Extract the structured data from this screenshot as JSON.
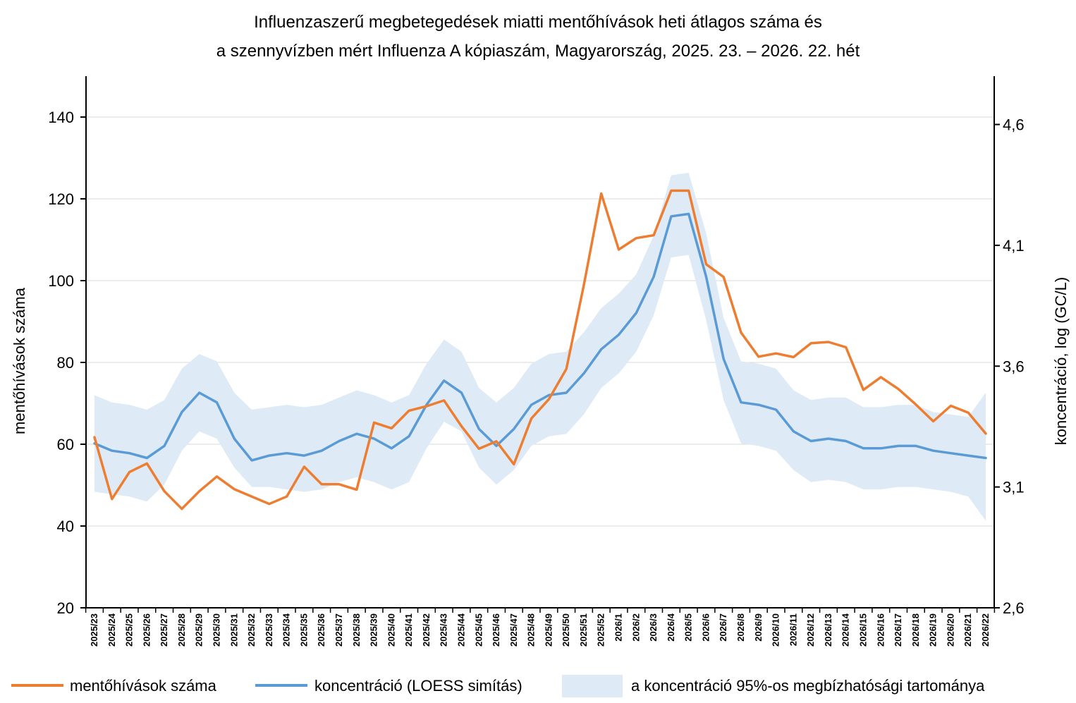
{
  "chart_data": {
    "type": "line",
    "title_lines": [
      "Influenzaszerű megbetegedések miatti mentőhívások heti átlagos száma és",
      "a szennyvízben mért Influenza A kópiaszám, Magyarország, 2025. 23. – 2026. 22. hét"
    ],
    "ylabel_left": "mentőhívások száma",
    "ylabel_right": "koncentráció, log (GC/L)",
    "ylim_left": [
      20,
      150
    ],
    "yticks_left": [
      "20",
      "40",
      "60",
      "80",
      "100",
      "120",
      "140"
    ],
    "ylim_right": [
      2.6,
      4.8
    ],
    "yticks_right": [
      {
        "value": 2.6,
        "label": "2,6"
      },
      {
        "value": 3.1,
        "label": "3,1"
      },
      {
        "value": 3.6,
        "label": "3,6"
      },
      {
        "value": 4.1,
        "label": "4,1"
      },
      {
        "value": 4.6,
        "label": "4,6"
      }
    ],
    "grid": "horizontal",
    "legend_position": "bottom",
    "categories": [
      "2025/23",
      "2025/24",
      "2025/25",
      "2025/26",
      "2025/27",
      "2025/28",
      "2025/29",
      "2025/30",
      "2025/31",
      "2025/32",
      "2025/33",
      "2025/34",
      "2025/35",
      "2025/36",
      "2025/37",
      "2025/38",
      "2025/39",
      "2025/40",
      "2025/41",
      "2025/42",
      "2025/43",
      "2025/44",
      "2025/45",
      "2025/46",
      "2025/47",
      "2025/48",
      "2025/49",
      "2025/50",
      "2025/51",
      "2025/52",
      "2026/1",
      "2026/2",
      "2026/3",
      "2026/4",
      "2026/5",
      "2026/6",
      "2026/7",
      "2026/8",
      "2026/9",
      "2026/10",
      "2026/11",
      "2026/12",
      "2026/13",
      "2026/14",
      "2026/15",
      "2026/16",
      "2026/17",
      "2026/18",
      "2026/19",
      "2026/20",
      "2026/21",
      "2026/22"
    ],
    "series": [
      {
        "name": "mentőhívások száma",
        "axis": "left",
        "color": "#ED7D31",
        "values": [
          61.7,
          46.6,
          53.2,
          55.3,
          48.5,
          44.2,
          48.5,
          52.1,
          49.0,
          47.2,
          45.4,
          47.2,
          54.5,
          50.2,
          50.2,
          48.9,
          65.3,
          63.9,
          68.2,
          69.3,
          70.7,
          64.4,
          58.9,
          60.7,
          55.1,
          66.3,
          71.0,
          78.4,
          98.9,
          121.3,
          107.6,
          110.4,
          111.1,
          122.0,
          122.0,
          104.0,
          100.9,
          87.3,
          81.4,
          82.2,
          81.3,
          84.7,
          85.0,
          83.7,
          73.3,
          76.4,
          73.5,
          69.7,
          65.6,
          69.4,
          67.7,
          62.6
        ]
      },
      {
        "name": "koncentráció (LOESS simítás)",
        "axis": "right",
        "color": "#5B9BD5",
        "values": [
          3.28,
          3.25,
          3.24,
          3.22,
          3.27,
          3.41,
          3.49,
          3.45,
          3.3,
          3.21,
          3.23,
          3.24,
          3.23,
          3.25,
          3.29,
          3.32,
          3.3,
          3.26,
          3.31,
          3.44,
          3.54,
          3.49,
          3.34,
          3.27,
          3.34,
          3.44,
          3.48,
          3.49,
          3.57,
          3.67,
          3.73,
          3.82,
          3.97,
          4.22,
          4.23,
          3.97,
          3.63,
          3.45,
          3.44,
          3.42,
          3.33,
          3.29,
          3.3,
          3.29,
          3.26,
          3.26,
          3.27,
          3.27,
          3.25,
          3.24,
          3.23,
          3.22
        ]
      }
    ],
    "band": {
      "name": "a koncentráció 95%-os megbízhatósági tartománya",
      "axis": "right",
      "color": "#DEEBF7",
      "lower": [
        3.08,
        3.07,
        3.06,
        3.04,
        3.11,
        3.25,
        3.33,
        3.3,
        3.18,
        3.1,
        3.1,
        3.09,
        3.08,
        3.09,
        3.12,
        3.14,
        3.12,
        3.09,
        3.12,
        3.26,
        3.37,
        3.33,
        3.18,
        3.11,
        3.17,
        3.27,
        3.31,
        3.32,
        3.4,
        3.51,
        3.57,
        3.66,
        3.81,
        4.05,
        4.06,
        3.79,
        3.46,
        3.28,
        3.27,
        3.25,
        3.17,
        3.12,
        3.13,
        3.12,
        3.09,
        3.09,
        3.1,
        3.1,
        3.09,
        3.08,
        3.06,
        2.96
      ],
      "upper": [
        3.48,
        3.45,
        3.44,
        3.42,
        3.46,
        3.59,
        3.65,
        3.62,
        3.49,
        3.42,
        3.43,
        3.44,
        3.43,
        3.44,
        3.47,
        3.5,
        3.48,
        3.45,
        3.48,
        3.61,
        3.71,
        3.66,
        3.51,
        3.45,
        3.51,
        3.61,
        3.65,
        3.66,
        3.74,
        3.84,
        3.9,
        3.98,
        4.14,
        4.39,
        4.4,
        4.15,
        3.8,
        3.62,
        3.61,
        3.59,
        3.5,
        3.46,
        3.47,
        3.47,
        3.43,
        3.43,
        3.44,
        3.44,
        3.41,
        3.4,
        3.39,
        3.49
      ]
    }
  }
}
